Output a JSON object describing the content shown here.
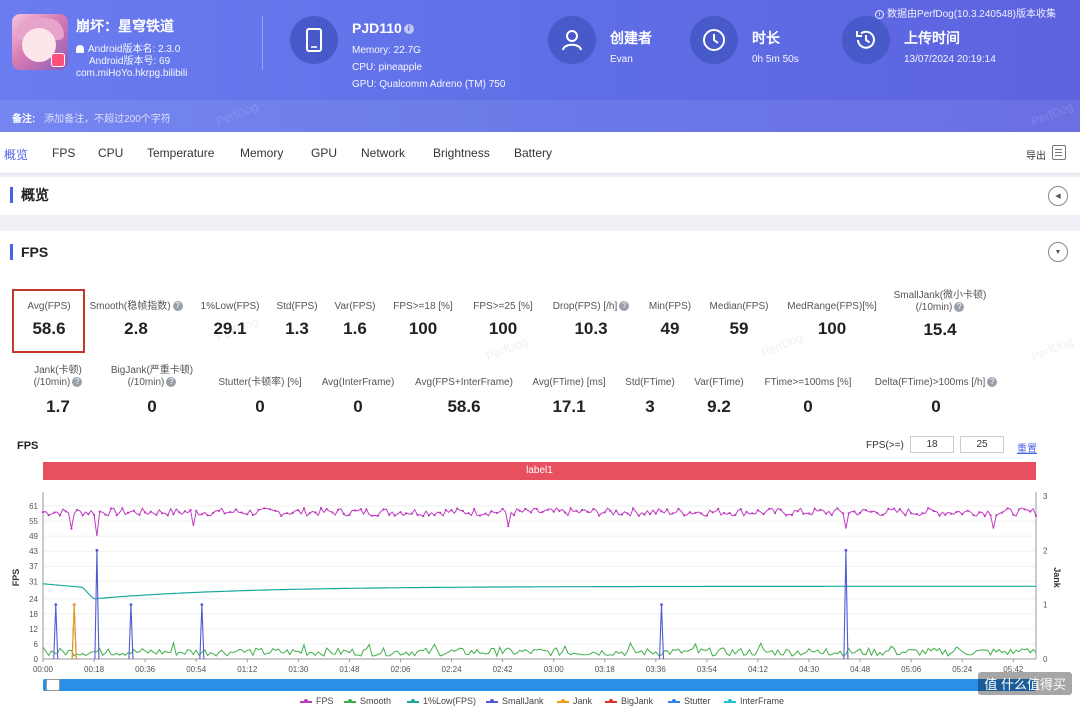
{
  "app": {
    "name": "崩坏：星穹铁道",
    "version_name": "Android版本名: 2.3.0",
    "version_code": "Android版本号: 69",
    "package": "com.miHoYo.hkrpg.bilibili"
  },
  "device": {
    "model": "PJD110",
    "memory": "Memory: 22.7G",
    "cpu": "CPU: pineapple",
    "gpu": "GPU: Qualcomm Adreno (TM) 750"
  },
  "creator": {
    "title": "创建者",
    "value": "Evan"
  },
  "duration": {
    "title": "时长",
    "value": "0h 5m 50s"
  },
  "upload": {
    "title": "上传时间",
    "value": "13/07/2024 20:19:14"
  },
  "source_note": "数据由PerfDog(10.3.240548)版本收集",
  "remark": {
    "label": "备注:",
    "placeholder": "添加备注，不超过200个字符"
  },
  "tabs": [
    "概览",
    "FPS",
    "CPU",
    "Temperature",
    "Memory",
    "GPU",
    "Network",
    "Brightness",
    "Battery"
  ],
  "export_label": "导出",
  "overview_title": "概览",
  "fps_section_title": "FPS",
  "stats_row1": [
    {
      "label": "Avg(FPS)",
      "value": "58.6"
    },
    {
      "label": "Smooth(稳帧指数)",
      "value": "2.8"
    },
    {
      "label": "1%Low(FPS)",
      "value": "29.1"
    },
    {
      "label": "Std(FPS)",
      "value": "1.3"
    },
    {
      "label": "Var(FPS)",
      "value": "1.6"
    },
    {
      "label": "FPS>=18 [%]",
      "value": "100"
    },
    {
      "label": "FPS>=25 [%]",
      "value": "100"
    },
    {
      "label": "Drop(FPS) [/h]",
      "value": "10.3"
    },
    {
      "label": "Min(FPS)",
      "value": "49"
    },
    {
      "label": "Median(FPS)",
      "value": "59"
    },
    {
      "label": "MedRange(FPS)[%]",
      "value": "100"
    },
    {
      "label": "SmallJank(微小卡顿)",
      "label2": "(/10min)",
      "value": "15.4"
    }
  ],
  "stats_row2": [
    {
      "label": "Jank(卡顿)",
      "label2": "(/10min)",
      "value": "1.7"
    },
    {
      "label": "BigJank(严重卡顿)",
      "label2": "(/10min)",
      "value": "0"
    },
    {
      "label": "Stutter(卡顿率) [%]",
      "value": "0"
    },
    {
      "label": "Avg(InterFrame)",
      "value": "0"
    },
    {
      "label": "Avg(FPS+InterFrame)",
      "value": "58.6"
    },
    {
      "label": "Avg(FTime) [ms]",
      "value": "17.1"
    },
    {
      "label": "Std(FTime)",
      "value": "3"
    },
    {
      "label": "Var(FTime)",
      "value": "9.2"
    },
    {
      "label": "FTime>=100ms [%]",
      "value": "0"
    },
    {
      "label": "Delta(FTime)>100ms [/h]",
      "value": "0"
    }
  ],
  "chart_controls": {
    "title": "FPS",
    "threshold_label": "FPS(>=)",
    "threshold1": "18",
    "threshold2": "25",
    "reset_label": "重置",
    "label_bar": "label1"
  },
  "watermark": "值 什么值得买",
  "bg_watermark": "PerfDog",
  "chart_data": {
    "type": "line",
    "xlabel": "",
    "ylabel": "FPS",
    "y2label": "Jank",
    "ylim": [
      0,
      65
    ],
    "y2lim": [
      0,
      3
    ],
    "y_ticks": [
      0,
      6,
      12,
      18,
      24,
      31,
      37,
      43,
      49,
      55,
      61
    ],
    "y2_ticks": [
      0,
      1,
      2,
      3
    ],
    "x_ticks": [
      "00:00",
      "00:18",
      "00:36",
      "00:54",
      "01:12",
      "01:30",
      "01:48",
      "02:06",
      "02:24",
      "02:42",
      "03:00",
      "03:18",
      "03:36",
      "03:54",
      "04:12",
      "04:30",
      "04:48",
      "05:06",
      "05:24",
      "05:42"
    ],
    "duration_s": 350,
    "series": [
      {
        "name": "FPS",
        "color": "#c13bc1",
        "typical": 58.6,
        "dips": [
          [
            10,
            52
          ],
          [
            19,
            49
          ],
          [
            53,
            53
          ],
          [
            164,
            53
          ],
          [
            283,
            52
          ],
          [
            335,
            52
          ]
        ]
      },
      {
        "name": "Smooth",
        "color": "#3fae49",
        "typical": 2.8
      },
      {
        "name": "1%Low(FPS)",
        "color": "#1aa89e",
        "start": 30,
        "mid": 24,
        "end": 29
      },
      {
        "name": "SmallJank",
        "color": "#4f5bd5",
        "spikes": [
          [
            4.5,
            1
          ],
          [
            11,
            1
          ],
          [
            19,
            2
          ],
          [
            31,
            1
          ],
          [
            56,
            1
          ],
          [
            218,
            1
          ],
          [
            283,
            2
          ]
        ]
      },
      {
        "name": "Jank",
        "color": "#f39c12",
        "spikes": [
          [
            11,
            1
          ]
        ]
      },
      {
        "name": "BigJank",
        "color": "#e03131",
        "spikes": []
      },
      {
        "name": "Stutter",
        "color": "#2f80ed",
        "spikes": []
      },
      {
        "name": "InterFrame",
        "color": "#22c1d6",
        "spikes": []
      }
    ]
  }
}
